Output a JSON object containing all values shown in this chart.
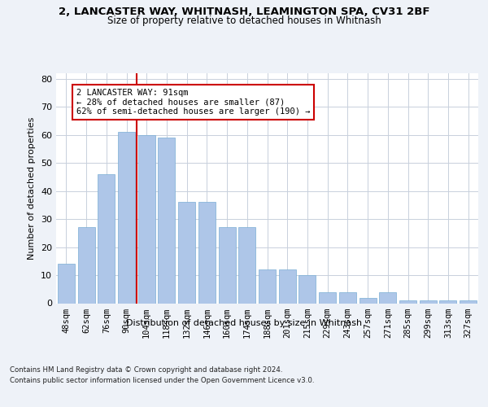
{
  "title_line1": "2, LANCASTER WAY, WHITNASH, LEAMINGTON SPA, CV31 2BF",
  "title_line2": "Size of property relative to detached houses in Whitnash",
  "xlabel": "Distribution of detached houses by size in Whitnash",
  "ylabel": "Number of detached properties",
  "categories": [
    "48sqm",
    "62sqm",
    "76sqm",
    "90sqm",
    "104sqm",
    "118sqm",
    "132sqm",
    "146sqm",
    "160sqm",
    "174sqm",
    "188sqm",
    "201sqm",
    "215sqm",
    "229sqm",
    "243sqm",
    "257sqm",
    "271sqm",
    "285sqm",
    "299sqm",
    "313sqm",
    "327sqm"
  ],
  "bar_heights": [
    14,
    27,
    46,
    61,
    60,
    59,
    36,
    36,
    27,
    27,
    12,
    12,
    10,
    4,
    4,
    2,
    4,
    1,
    1,
    1,
    1
  ],
  "bar_color": "#aec6e8",
  "bar_edgecolor": "#7aadd4",
  "vline_color": "#cc0000",
  "annotation_text": "2 LANCASTER WAY: 91sqm\n← 28% of detached houses are smaller (87)\n62% of semi-detached houses are larger (190) →",
  "ylim": [
    0,
    82
  ],
  "yticks": [
    0,
    10,
    20,
    30,
    40,
    50,
    60,
    70,
    80
  ],
  "footer_line1": "Contains HM Land Registry data © Crown copyright and database right 2024.",
  "footer_line2": "Contains public sector information licensed under the Open Government Licence v3.0.",
  "bg_color": "#eef2f8",
  "plot_bg_color": "#ffffff",
  "grid_color": "#c8d0dc"
}
